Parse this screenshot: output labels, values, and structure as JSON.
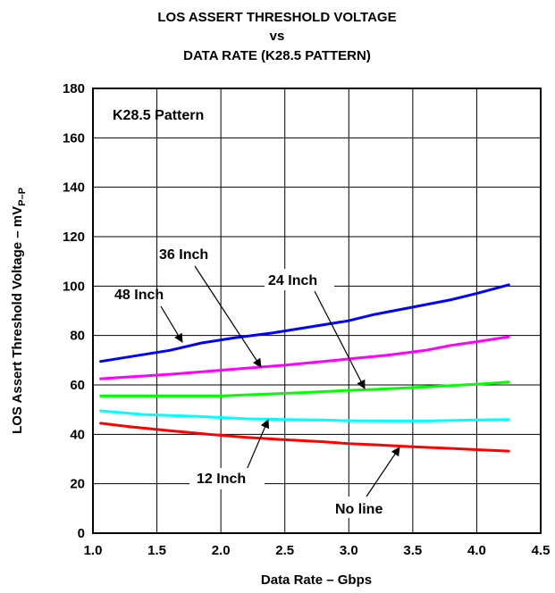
{
  "chart_data": {
    "type": "line",
    "title": [
      "LOS ASSERT THRESHOLD VOLTAGE",
      "vs",
      "DATA RATE (K28.5 PATTERN)"
    ],
    "xlabel": "Data Rate – Gbps",
    "ylabel": {
      "main": "LOS Assert Threshold Voltage – mV",
      "sub": "P–P"
    },
    "xlim": [
      1.0,
      4.5
    ],
    "ylim": [
      0,
      180
    ],
    "x_ticks": [
      "1.0",
      "1.5",
      "2.0",
      "2.5",
      "3.0",
      "3.5",
      "4.0",
      "4.5"
    ],
    "y_ticks": [
      "0",
      "20",
      "40",
      "60",
      "80",
      "100",
      "120",
      "140",
      "160",
      "180"
    ],
    "grid": true,
    "series": [
      {
        "name": "48 Inch",
        "color": "#0000ff",
        "x": [
          1.06,
          1.3,
          1.6,
          1.85,
          2.1,
          2.4,
          2.7,
          3.0,
          3.2,
          3.5,
          3.8,
          4.0,
          4.25
        ],
        "y": [
          69.5,
          71.5,
          74,
          77,
          79,
          81,
          83.5,
          86,
          88.5,
          91.5,
          94.5,
          97,
          100.5
        ]
      },
      {
        "name": "36 Inch",
        "color": "#ff00ff",
        "x": [
          1.06,
          1.3,
          1.6,
          1.9,
          2.2,
          2.5,
          2.8,
          3.0,
          3.3,
          3.6,
          3.8,
          4.0,
          4.25
        ],
        "y": [
          62.5,
          63.3,
          64.3,
          65.5,
          66.8,
          68,
          69.5,
          70.5,
          72,
          74,
          76,
          77.5,
          79.5
        ]
      },
      {
        "name": "24 Inch",
        "color": "#00ff00",
        "x": [
          1.06,
          1.5,
          2.0,
          2.2,
          2.6,
          3.0,
          3.2,
          3.6,
          4.0,
          4.25
        ],
        "y": [
          55.5,
          55.5,
          55.5,
          56,
          56.8,
          57.8,
          58.2,
          59.2,
          60.3,
          61.2
        ]
      },
      {
        "name": "12 Inch",
        "color": "#00ffff",
        "x": [
          1.06,
          1.4,
          1.8,
          2.2,
          2.5,
          2.8,
          3.0,
          3.3,
          3.6,
          3.8,
          4.0,
          4.25
        ],
        "y": [
          49.5,
          48,
          47.3,
          46.3,
          46,
          45.8,
          45.5,
          45.4,
          45.4,
          45.6,
          45.8,
          46
        ]
      },
      {
        "name": "No line",
        "color": "#ff0000",
        "x": [
          1.06,
          1.3,
          1.6,
          1.9,
          2.2,
          2.5,
          2.8,
          3.0,
          3.2,
          3.5,
          3.8,
          4.0,
          4.25
        ],
        "y": [
          44.5,
          43,
          41.5,
          40,
          38.8,
          37.8,
          37,
          36.2,
          35.8,
          35,
          34.3,
          33.8,
          33.2
        ]
      }
    ],
    "annotations": [
      {
        "text": "K28.5 Pattern"
      },
      {
        "text": "48 Inch"
      },
      {
        "text": "36 Inch"
      },
      {
        "text": "24 Inch"
      },
      {
        "text": "12 Inch"
      },
      {
        "text": "No line"
      }
    ]
  }
}
